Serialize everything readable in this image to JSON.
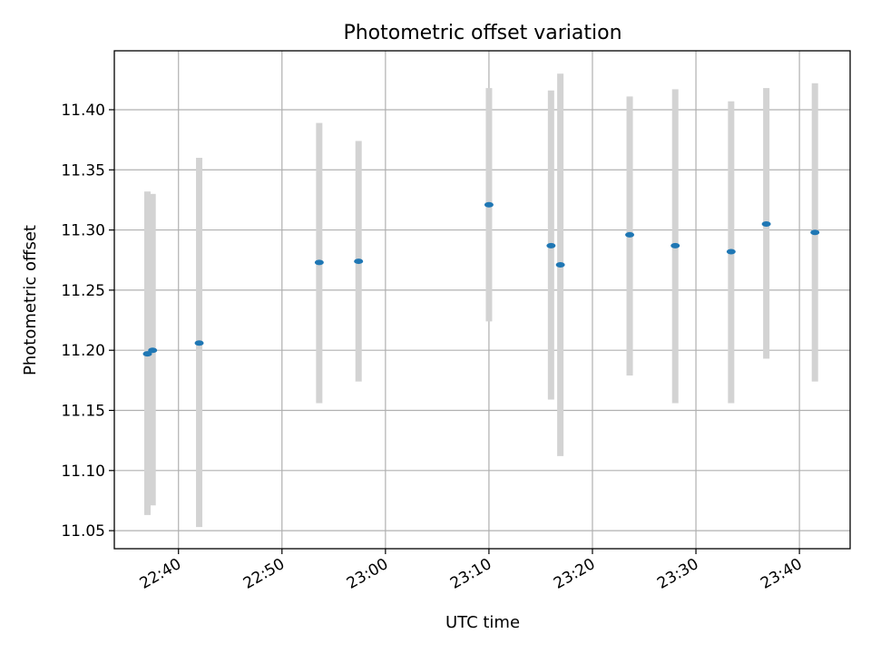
{
  "chart_data": {
    "type": "scatter",
    "title": "Photometric offset variation",
    "xlabel": "UTC time",
    "ylabel": "Photometric offset",
    "grid": true,
    "x_ticks": [
      {
        "minutes": 40,
        "label": "22:40"
      },
      {
        "minutes": 50,
        "label": "22:50"
      },
      {
        "minutes": 60,
        "label": "23:00"
      },
      {
        "minutes": 70,
        "label": "23:10"
      },
      {
        "minutes": 80,
        "label": "23:20"
      },
      {
        "minutes": 90,
        "label": "23:30"
      },
      {
        "minutes": 100,
        "label": "23:40"
      }
    ],
    "y_ticks": [
      {
        "value": 11.05,
        "label": "11.05"
      },
      {
        "value": 11.1,
        "label": "11.10"
      },
      {
        "value": 11.15,
        "label": "11.15"
      },
      {
        "value": 11.2,
        "label": "11.20"
      },
      {
        "value": 11.25,
        "label": "11.25"
      },
      {
        "value": 11.3,
        "label": "11.30"
      },
      {
        "value": 11.35,
        "label": "11.35"
      },
      {
        "value": 11.4,
        "label": "11.40"
      }
    ],
    "x_unit": "minutes after 22:00 UTC",
    "xlim": [
      33.8,
      104.9
    ],
    "ylim": [
      11.035,
      11.449
    ],
    "series": [
      {
        "name": "Photometric offset",
        "color": "#1f77b4",
        "error_color": "#d3d3d3",
        "points": [
          {
            "x": 37.0,
            "y": 11.197,
            "err_low": 11.063,
            "err_high": 11.332
          },
          {
            "x": 37.5,
            "y": 11.2,
            "err_low": 11.071,
            "err_high": 11.33
          },
          {
            "x": 42.0,
            "y": 11.206,
            "err_low": 11.053,
            "err_high": 11.36
          },
          {
            "x": 53.6,
            "y": 11.273,
            "err_low": 11.156,
            "err_high": 11.389
          },
          {
            "x": 57.4,
            "y": 11.274,
            "err_low": 11.174,
            "err_high": 11.374
          },
          {
            "x": 70.0,
            "y": 11.321,
            "err_low": 11.224,
            "err_high": 11.418
          },
          {
            "x": 76.0,
            "y": 11.287,
            "err_low": 11.159,
            "err_high": 11.416
          },
          {
            "x": 76.9,
            "y": 11.271,
            "err_low": 11.112,
            "err_high": 11.43
          },
          {
            "x": 83.6,
            "y": 11.296,
            "err_low": 11.179,
            "err_high": 11.411
          },
          {
            "x": 88.0,
            "y": 11.287,
            "err_low": 11.156,
            "err_high": 11.417
          },
          {
            "x": 93.4,
            "y": 11.282,
            "err_low": 11.156,
            "err_high": 11.407
          },
          {
            "x": 96.8,
            "y": 11.305,
            "err_low": 11.193,
            "err_high": 11.418
          },
          {
            "x": 101.5,
            "y": 11.298,
            "err_low": 11.174,
            "err_high": 11.422
          }
        ]
      }
    ]
  }
}
